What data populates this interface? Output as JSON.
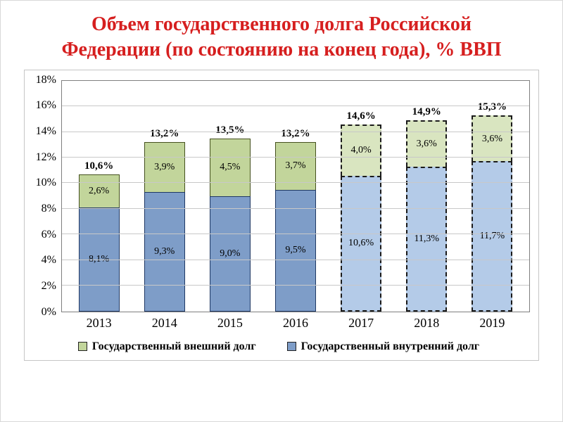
{
  "slide": {
    "title_color": "#d61f1f"
  },
  "chart_data": {
    "type": "bar",
    "stacked": true,
    "title": "Объем государственного долга Российской Федерации (по состоянию на конец года), % ВВП",
    "categories": [
      "2013",
      "2014",
      "2015",
      "2016",
      "2017",
      "2018",
      "2019"
    ],
    "series": [
      {
        "name": "Государственный внутренний долг",
        "values": [
          8.1,
          9.3,
          9.0,
          9.5,
          10.6,
          11.3,
          11.7
        ],
        "labels": [
          "8,1%",
          "9,3%",
          "9,0%",
          "9,5%",
          "10,6%",
          "11,3%",
          "11,7%"
        ],
        "color": "#7e9dc8",
        "color_forecast": "#b4cbe8",
        "border_color": "#1f3864"
      },
      {
        "name": "Государственный внешний долг",
        "values": [
          2.6,
          3.9,
          4.5,
          3.7,
          4.0,
          3.6,
          3.6
        ],
        "labels": [
          "2,6%",
          "3,9%",
          "4,5%",
          "3,7%",
          "4,0%",
          "3,6%",
          "3,6%"
        ],
        "color": "#c2d59b",
        "color_forecast": "#d9e5c0",
        "border_color": "#45511f"
      }
    ],
    "totals": [
      10.6,
      13.2,
      13.5,
      13.2,
      14.6,
      14.9,
      15.3
    ],
    "total_labels": [
      "10,6%",
      "13,2%",
      "13,5%",
      "13,2%",
      "14,6%",
      "14,9%",
      "15,3%"
    ],
    "forecast_start_index": 4,
    "ylim": [
      0,
      18
    ],
    "ytick_step": 2,
    "ytick_labels": [
      "0%",
      "2%",
      "4%",
      "6%",
      "8%",
      "10%",
      "12%",
      "14%",
      "16%",
      "18%"
    ],
    "grid": true,
    "legend_position": "bottom"
  },
  "legend": [
    {
      "label": "Государственный внешний долг",
      "color": "#c2d59b"
    },
    {
      "label": "Государственный внутренний долг",
      "color": "#7e9dc8"
    }
  ]
}
